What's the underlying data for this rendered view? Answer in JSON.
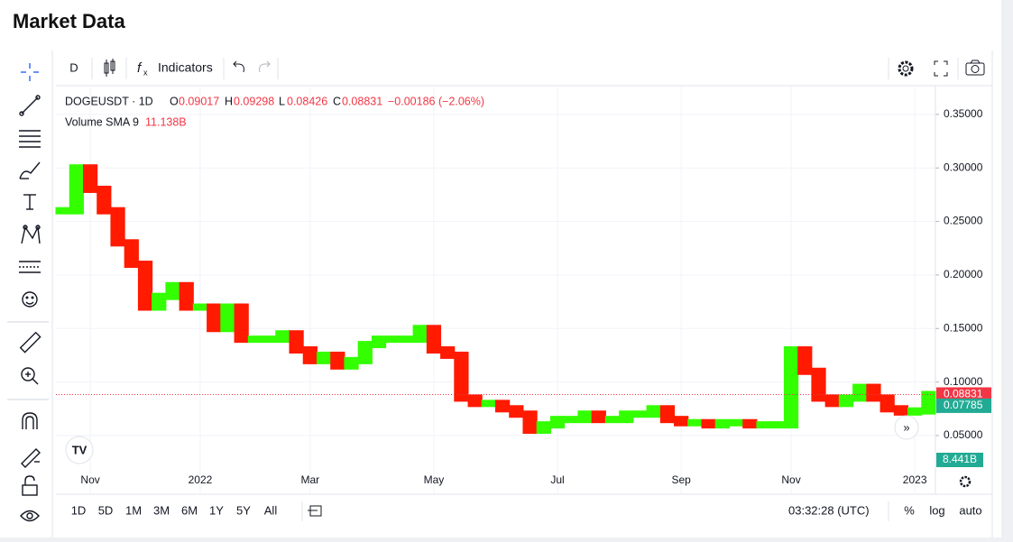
{
  "header": {
    "title": "Market Data"
  },
  "toolbar": {
    "interval": "D",
    "indicators": "Indicators"
  },
  "legend": {
    "symbol": "DOGEUSDT · 1D",
    "o_label": "O",
    "open": "0.09017",
    "h_label": "H",
    "high": "0.09298",
    "l_label": "L",
    "low": "0.08426",
    "c_label": "C",
    "close": "0.08831",
    "change": "−0.00186 (−2.06%)",
    "volume_name": "Volume SMA 9",
    "volume_value": "11.138B"
  },
  "chart_data": {
    "type": "candlestick",
    "categories": [
      null,
      null,
      "Nov",
      null,
      null,
      null,
      null,
      null,
      null,
      null,
      "2022",
      null,
      null,
      null,
      null,
      null,
      null,
      null,
      "Mar",
      null,
      null,
      null,
      null,
      null,
      null,
      null,
      null,
      "May",
      null,
      null,
      null,
      null,
      null,
      null,
      null,
      null,
      "Jul",
      null,
      null,
      null,
      null,
      null,
      null,
      null,
      null,
      "Sep",
      null,
      null,
      null,
      null,
      null,
      null,
      null,
      "Nov",
      null,
      null,
      null,
      null,
      null,
      null,
      null,
      null,
      "2023",
      null
    ],
    "values": [
      0.26,
      0.3,
      0.28,
      0.26,
      0.23,
      0.21,
      0.17,
      0.18,
      0.19,
      0.17,
      0.17,
      0.15,
      0.17,
      0.14,
      0.14,
      0.14,
      0.145,
      0.13,
      0.12,
      0.125,
      0.115,
      0.12,
      0.135,
      0.14,
      0.14,
      0.14,
      0.15,
      0.13,
      0.125,
      0.085,
      0.08,
      0.08,
      0.075,
      0.07,
      0.055,
      0.06,
      0.065,
      0.065,
      0.07,
      0.065,
      0.065,
      0.07,
      0.07,
      0.075,
      0.065,
      0.062,
      0.062,
      0.06,
      0.062,
      0.062,
      0.06,
      0.06,
      0.06,
      0.13,
      0.11,
      0.085,
      0.08,
      0.085,
      0.095,
      0.085,
      0.075,
      0.072,
      0.073,
      0.0883
    ],
    "up_color": "#33ff00",
    "down_color": "#ff1a00",
    "ylim": [
      0.0188,
      0.376
    ],
    "yticks": [
      {
        "value": 0.05,
        "label": "0.05000"
      },
      {
        "value": 0.1,
        "label": "0.10000"
      },
      {
        "value": 0.15,
        "label": "0.15000"
      },
      {
        "value": 0.2,
        "label": "0.20000"
      },
      {
        "value": 0.25,
        "label": "0.25000"
      },
      {
        "value": 0.3,
        "label": "0.30000"
      },
      {
        "value": 0.35,
        "label": "0.35000"
      }
    ],
    "grid": true,
    "last_price": 0.08831,
    "last_price_color": "#f23645",
    "sma_price": 0.07785,
    "sma_color": "#22ab94",
    "volume_label": "8.441B"
  },
  "bottom_bar": {
    "ranges": [
      "1D",
      "5D",
      "1M",
      "3M",
      "6M",
      "1Y",
      "5Y",
      "All"
    ],
    "clock": "03:32:28 (UTC)",
    "percent": "%",
    "log": "log",
    "auto": "auto"
  }
}
